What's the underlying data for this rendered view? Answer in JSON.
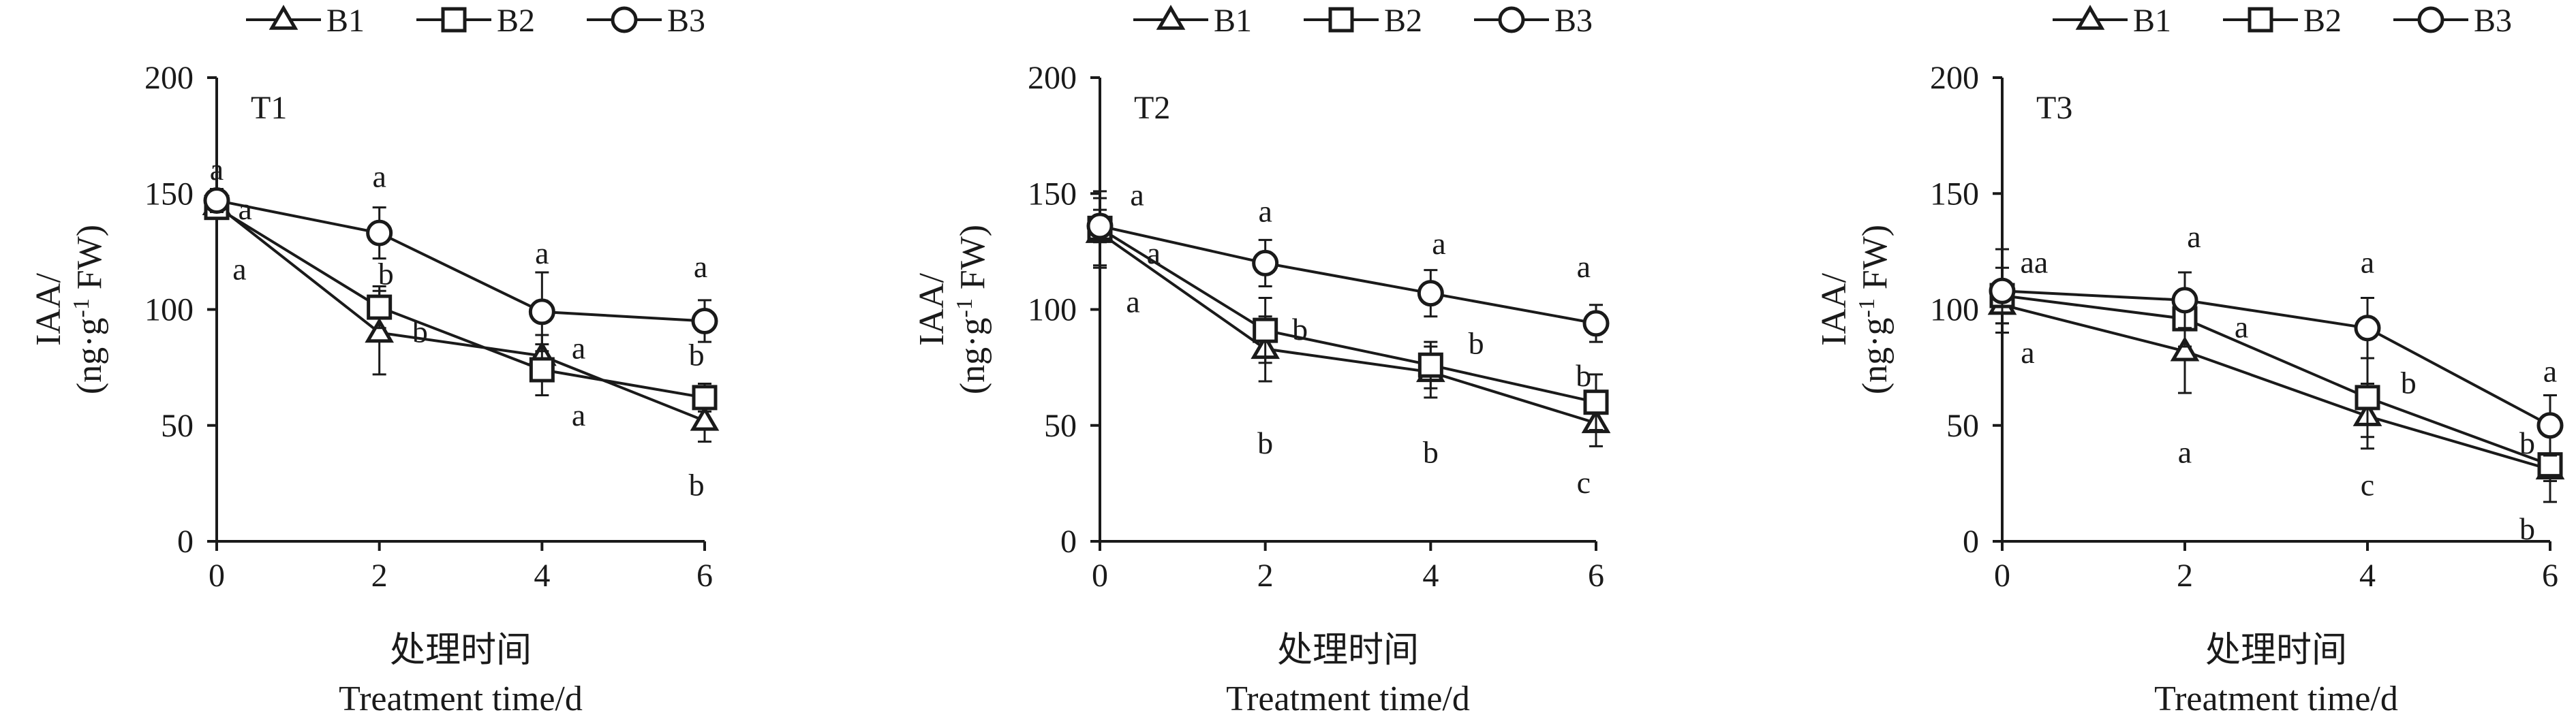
{
  "chart_data": [
    {
      "type": "line",
      "panel": "T1",
      "x": [
        0,
        2,
        4,
        6
      ],
      "xlim": [
        0,
        6
      ],
      "ylim": [
        0,
        200
      ],
      "yticks": [
        0,
        50,
        100,
        150,
        200
      ],
      "xticks": [
        0,
        2,
        4,
        6
      ],
      "ylabel_line1": "IAA/",
      "ylabel_line2": "(ng·g",
      "ylabel_sup": "-1",
      "ylabel_line2_end": " FW)",
      "xlabel_cn": "处理时间",
      "xlabel_en": "Treatment time/d",
      "legend": [
        "B1",
        "B2",
        "B3"
      ],
      "series": [
        {
          "name": "B1",
          "marker": "triangle",
          "values": [
            145,
            90,
            80,
            52
          ],
          "err": [
            3,
            18,
            9,
            9
          ]
        },
        {
          "name": "B2",
          "marker": "square",
          "values": [
            144,
            101,
            74,
            62
          ],
          "err": [
            3,
            9,
            11,
            6
          ]
        },
        {
          "name": "B3",
          "marker": "circle",
          "values": [
            147,
            133,
            99,
            95
          ],
          "err": [
            5,
            11,
            17,
            9
          ]
        }
      ],
      "annotations": [
        {
          "x": 0,
          "y": 160,
          "text": "a"
        },
        {
          "x": 0.35,
          "y": 143,
          "text": "a"
        },
        {
          "x": 0.28,
          "y": 117,
          "text": "a"
        },
        {
          "x": 2,
          "y": 157,
          "text": "a"
        },
        {
          "x": 2.08,
          "y": 115,
          "text": "b"
        },
        {
          "x": 2.5,
          "y": 90,
          "text": "b"
        },
        {
          "x": 4,
          "y": 124,
          "text": "a"
        },
        {
          "x": 4.45,
          "y": 83,
          "text": "a"
        },
        {
          "x": 4.45,
          "y": 54,
          "text": "a"
        },
        {
          "x": 5.95,
          "y": 118,
          "text": "a"
        },
        {
          "x": 5.9,
          "y": 80,
          "text": "b"
        },
        {
          "x": 5.9,
          "y": 24,
          "text": "b"
        }
      ]
    },
    {
      "type": "line",
      "panel": "T2",
      "x": [
        0,
        2,
        4,
        6
      ],
      "xlim": [
        0,
        6
      ],
      "ylim": [
        0,
        200
      ],
      "yticks": [
        0,
        50,
        100,
        150,
        200
      ],
      "xticks": [
        0,
        2,
        4,
        6
      ],
      "ylabel_line1": "IAA/",
      "ylabel_line2": "(ng·g",
      "ylabel_sup": "-1",
      "ylabel_line2_end": " FW)",
      "xlabel_cn": "处理时间",
      "xlabel_en": "Treatment time/d",
      "legend": [
        "B1",
        "B2",
        "B3"
      ],
      "series": [
        {
          "name": "B1",
          "marker": "triangle",
          "values": [
            133,
            83,
            73,
            51
          ],
          "err": [
            15,
            14,
            11,
            10
          ]
        },
        {
          "name": "B2",
          "marker": "square",
          "values": [
            135,
            91,
            76,
            60
          ],
          "err": [
            16,
            14,
            10,
            12
          ]
        },
        {
          "name": "B3",
          "marker": "circle",
          "values": [
            136,
            120,
            107,
            94
          ],
          "err": [
            7,
            10,
            10,
            8
          ]
        }
      ],
      "annotations": [
        {
          "x": 0.45,
          "y": 149,
          "text": "a"
        },
        {
          "x": 0.65,
          "y": 124,
          "text": "a"
        },
        {
          "x": 0.4,
          "y": 103,
          "text": "a"
        },
        {
          "x": 2,
          "y": 142,
          "text": "a"
        },
        {
          "x": 2.42,
          "y": 91,
          "text": "b"
        },
        {
          "x": 2,
          "y": 42,
          "text": "b"
        },
        {
          "x": 4.1,
          "y": 128,
          "text": "a"
        },
        {
          "x": 4.55,
          "y": 85,
          "text": "b"
        },
        {
          "x": 4,
          "y": 38,
          "text": "b"
        },
        {
          "x": 5.85,
          "y": 118,
          "text": "a"
        },
        {
          "x": 5.85,
          "y": 71,
          "text": "b"
        },
        {
          "x": 5.85,
          "y": 25,
          "text": "c"
        }
      ]
    },
    {
      "type": "line",
      "panel": "T3",
      "x": [
        0,
        2,
        4,
        6
      ],
      "xlim": [
        0,
        6
      ],
      "ylim": [
        0,
        200
      ],
      "yticks": [
        0,
        50,
        100,
        150,
        200
      ],
      "xticks": [
        0,
        2,
        4,
        6
      ],
      "ylabel_line1": "IAA/",
      "ylabel_line2": "(ng·g",
      "ylabel_sup": "-1",
      "ylabel_line2_end": " FW)",
      "xlabel_cn": "处理时间",
      "xlabel_en": "Treatment time/d",
      "legend": [
        "B1",
        "B2",
        "B3"
      ],
      "series": [
        {
          "name": "B1",
          "marker": "triangle",
          "values": [
            102,
            82,
            54,
            31
          ],
          "err": [
            8,
            18,
            14,
            5
          ]
        },
        {
          "name": "B2",
          "marker": "square",
          "values": [
            106,
            96,
            62,
            33
          ],
          "err": [
            12,
            12,
            17,
            16
          ]
        },
        {
          "name": "B3",
          "marker": "circle",
          "values": [
            108,
            104,
            92,
            50
          ],
          "err": [
            18,
            12,
            13,
            13
          ]
        }
      ],
      "annotations": [
        {
          "x": 0.35,
          "y": 120,
          "text": "aa"
        },
        {
          "x": 0.28,
          "y": 81,
          "text": "a"
        },
        {
          "x": 2.1,
          "y": 131,
          "text": "a"
        },
        {
          "x": 2.62,
          "y": 92,
          "text": "a"
        },
        {
          "x": 2,
          "y": 38,
          "text": "a"
        },
        {
          "x": 4,
          "y": 120,
          "text": "a"
        },
        {
          "x": 4.45,
          "y": 68,
          "text": "b"
        },
        {
          "x": 4,
          "y": 24,
          "text": "c"
        },
        {
          "x": 6,
          "y": 73,
          "text": "a"
        },
        {
          "x": 5.75,
          "y": 42,
          "text": "b"
        },
        {
          "x": 5.75,
          "y": 5,
          "text": "b"
        }
      ]
    }
  ]
}
